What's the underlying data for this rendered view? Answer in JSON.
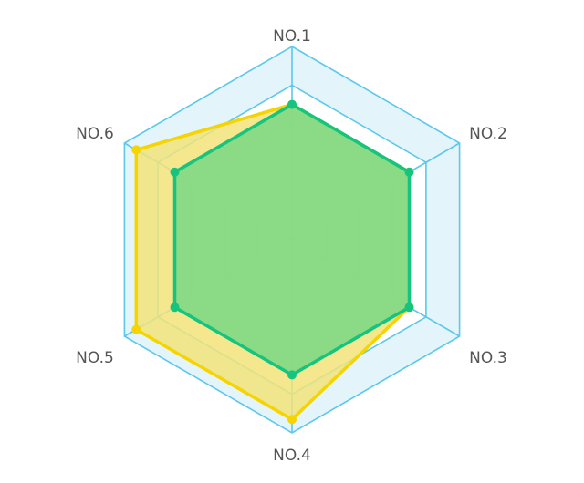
{
  "chart_data": {
    "type": "radar",
    "title": "",
    "categories": [
      "NO.1",
      "NO.2",
      "NO.3",
      "NO.4",
      "NO.5",
      "NO.6"
    ],
    "rmax": 1.0,
    "levels": [
      0.2,
      0.4,
      0.6,
      0.8,
      1.0
    ],
    "series": [
      {
        "values": [
          0.7,
          0.7,
          0.7,
          0.93,
          0.93,
          0.93
        ],
        "color": "#f5d400",
        "fill": "#f2e37a"
      },
      {
        "values": [
          0.7,
          0.7,
          0.7,
          0.7,
          0.7,
          0.7
        ],
        "color": "#14c47f",
        "fill": "#7fd884"
      }
    ],
    "grid": true,
    "grid_outer_color": "#5cc8ec",
    "grid_inner_color": "#8fd3ae",
    "band_fill": "#e3f4fa",
    "legend": "none"
  }
}
